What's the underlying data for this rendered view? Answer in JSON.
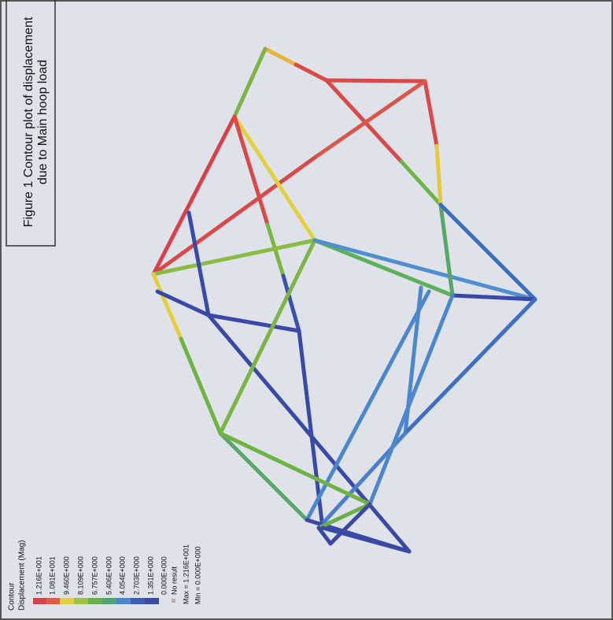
{
  "caption": {
    "line1": "Figure 1 Contour plot of displacement",
    "line2": "due to Main hoop load"
  },
  "legend": {
    "title": "Contour",
    "subtitle": "Displacement (Mag)",
    "levels": [
      "1.216E+001",
      "1.081E+001",
      "9.460E+000",
      "8.109E+000",
      "6.757E+000",
      "5.406E+000",
      "4.054E+000",
      "2.703E+000",
      "1.351E+000",
      "0.000E+000"
    ],
    "no_result": "No result",
    "max": "Max = 1.216E+001",
    "min": "Min = 0.000E+000"
  }
}
